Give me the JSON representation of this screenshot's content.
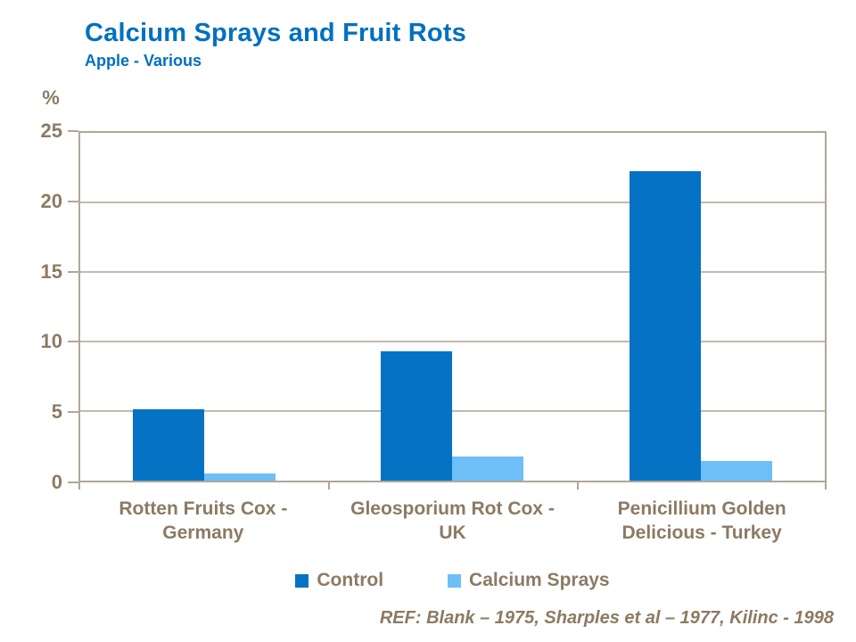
{
  "header": {
    "title": "Calcium Sprays and Fruit Rots",
    "subtitle": "Apple - Various"
  },
  "footer": {
    "reference": "REF: Blank – 1975, Sharples et al – 1977, Kilinc - 1998"
  },
  "colors": {
    "title_blue": "#0070C0",
    "control_blue": "#0572C4",
    "calcium_blue": "#6EBEF7",
    "text_brown": "#8C7A63",
    "axis_tan": "#B2A696",
    "grid_tan": "#C4BAAC"
  },
  "chart_data": {
    "type": "bar",
    "title": "Calcium Sprays and Fruit Rots",
    "subtitle": "Apple - Various",
    "ylabel": "%",
    "xlabel": "",
    "ylim": [
      0,
      25
    ],
    "yticks": [
      0,
      5,
      10,
      15,
      20,
      25
    ],
    "grid": true,
    "legend_position": "bottom",
    "categories": [
      "Rotten Fruits Cox - Germany",
      "Gleosporium Rot Cox - UK",
      "Penicillium Golden Delicious - Turkey"
    ],
    "category_label_lines": [
      [
        "Rotten Fruits Cox -",
        "Germany"
      ],
      [
        "Gleosporium Rot Cox -",
        "UK"
      ],
      [
        "Penicillium Golden",
        "Delicious - Turkey"
      ]
    ],
    "series": [
      {
        "name": "Control",
        "color": "#0572C4",
        "values": [
          5.1,
          9.2,
          22
        ]
      },
      {
        "name": "Calcium Sprays",
        "color": "#6EBEF7",
        "values": [
          0.5,
          1.7,
          1.4
        ]
      }
    ]
  }
}
